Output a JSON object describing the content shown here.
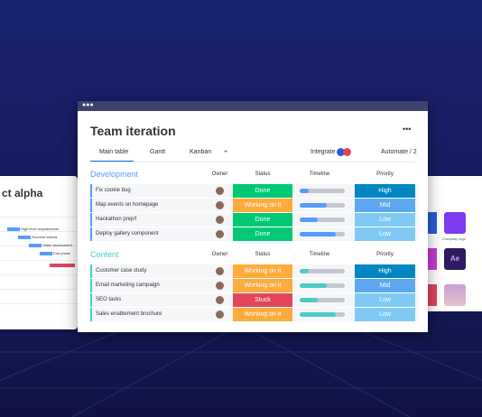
{
  "board": {
    "title": "Team iteration",
    "menu": "•••",
    "tabs": [
      "Main table",
      "Gantt",
      "Kanban",
      "+"
    ],
    "integrate": "Integrate",
    "automate": "Automate / 2",
    "groups": [
      {
        "name": "Development",
        "color": "#579bfc",
        "bar_color": "#579bfc",
        "columns": [
          "Owner",
          "Status",
          "Timeline",
          "Priority"
        ],
        "rows": [
          {
            "task": "Fix cookie bug",
            "status": "Done",
            "timeline": 0.2,
            "priority": "High"
          },
          {
            "task": "Map events on homepage",
            "status": "Working on it",
            "timeline": 0.6,
            "priority": "Mid"
          },
          {
            "task": "Hackathon prep!!",
            "status": "Done",
            "timeline": 0.4,
            "priority": "Low"
          },
          {
            "task": "Deploy gallery component",
            "status": "Done",
            "timeline": 0.8,
            "priority": "Low"
          }
        ]
      },
      {
        "name": "Content",
        "color": "#4eccc6",
        "bar_color": "#4eccc6",
        "columns": [
          "Owner",
          "Status",
          "Timeline",
          "Priority"
        ],
        "rows": [
          {
            "task": "Customer case study",
            "status": "Working on it",
            "timeline": 0.2,
            "priority": "High"
          },
          {
            "task": "Email marketing campaign",
            "status": "Working on it",
            "timeline": 0.6,
            "priority": "Mid"
          },
          {
            "task": "SEO tasks",
            "status": "Stuck",
            "timeline": 0.4,
            "priority": "Low"
          },
          {
            "task": "Sales enablement brochure",
            "status": "Working on it",
            "timeline": 0.8,
            "priority": "Low"
          }
        ]
      }
    ],
    "status_colors": {
      "Done": "#00c875",
      "Working on it": "#fdab3d",
      "Stuck": "#e2445c"
    },
    "priority_colors": {
      "High": "#0086c0",
      "Mid": "#5ea8f2",
      "Low": "#7fcaf5"
    }
  },
  "left_card": {
    "title": "ct alpha",
    "tasks": [
      "High level requirements",
      "Success criteria",
      "Stake assessment",
      "End phase"
    ]
  },
  "right_card": {
    "labels": [
      "Company logo",
      "Ae"
    ]
  }
}
